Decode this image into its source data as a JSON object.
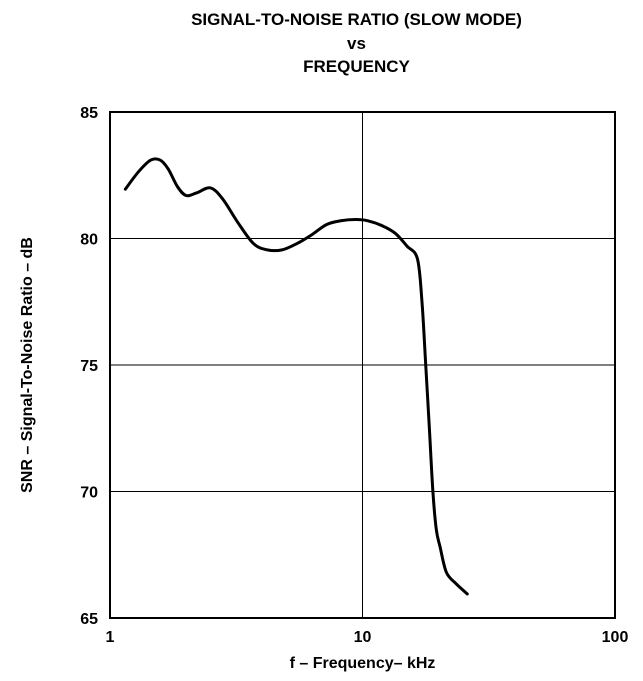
{
  "chart_data": {
    "type": "line",
    "title_lines": [
      "SIGNAL-TO-NOISE RATIO (SLOW MODE)",
      "vs",
      "FREQUENCY"
    ],
    "xlabel": "f – Frequency– kHz",
    "ylabel": "SNR – Signal-To-Noise Ratio – dB",
    "x_scale": "log",
    "xlim": [
      1,
      100
    ],
    "ylim": [
      65,
      85
    ],
    "x_ticks": [
      1,
      10,
      100
    ],
    "x_tick_labels": [
      "1",
      "10",
      "100"
    ],
    "y_ticks": [
      65,
      70,
      75,
      80,
      85
    ],
    "y_tick_labels": [
      "65",
      "70",
      "75",
      "80",
      "85"
    ],
    "grid": true,
    "colors": {
      "line": "#000000",
      "grid": "#000000",
      "background": "#ffffff"
    },
    "series": [
      {
        "x": [
          1.15,
          1.3,
          1.45,
          1.58,
          1.7,
          1.85,
          2.0,
          2.2,
          2.5,
          2.8,
          3.2,
          3.7,
          4.2,
          4.8,
          5.5,
          6.3,
          7.2,
          8.2,
          9.4,
          10.5,
          12.0,
          13.5,
          15.0,
          16.5,
          17.2,
          17.8,
          18.4,
          19.0,
          19.6,
          20.3,
          21.5,
          23.5,
          26.0
        ],
        "y": [
          81.95,
          82.65,
          83.1,
          83.1,
          82.75,
          82.05,
          81.7,
          81.8,
          82.0,
          81.55,
          80.65,
          79.8,
          79.55,
          79.55,
          79.8,
          80.15,
          80.55,
          80.7,
          80.75,
          80.7,
          80.5,
          80.2,
          79.7,
          79.2,
          77.5,
          75.0,
          72.5,
          70.0,
          68.5,
          67.8,
          66.8,
          66.35,
          65.95
        ]
      }
    ]
  }
}
